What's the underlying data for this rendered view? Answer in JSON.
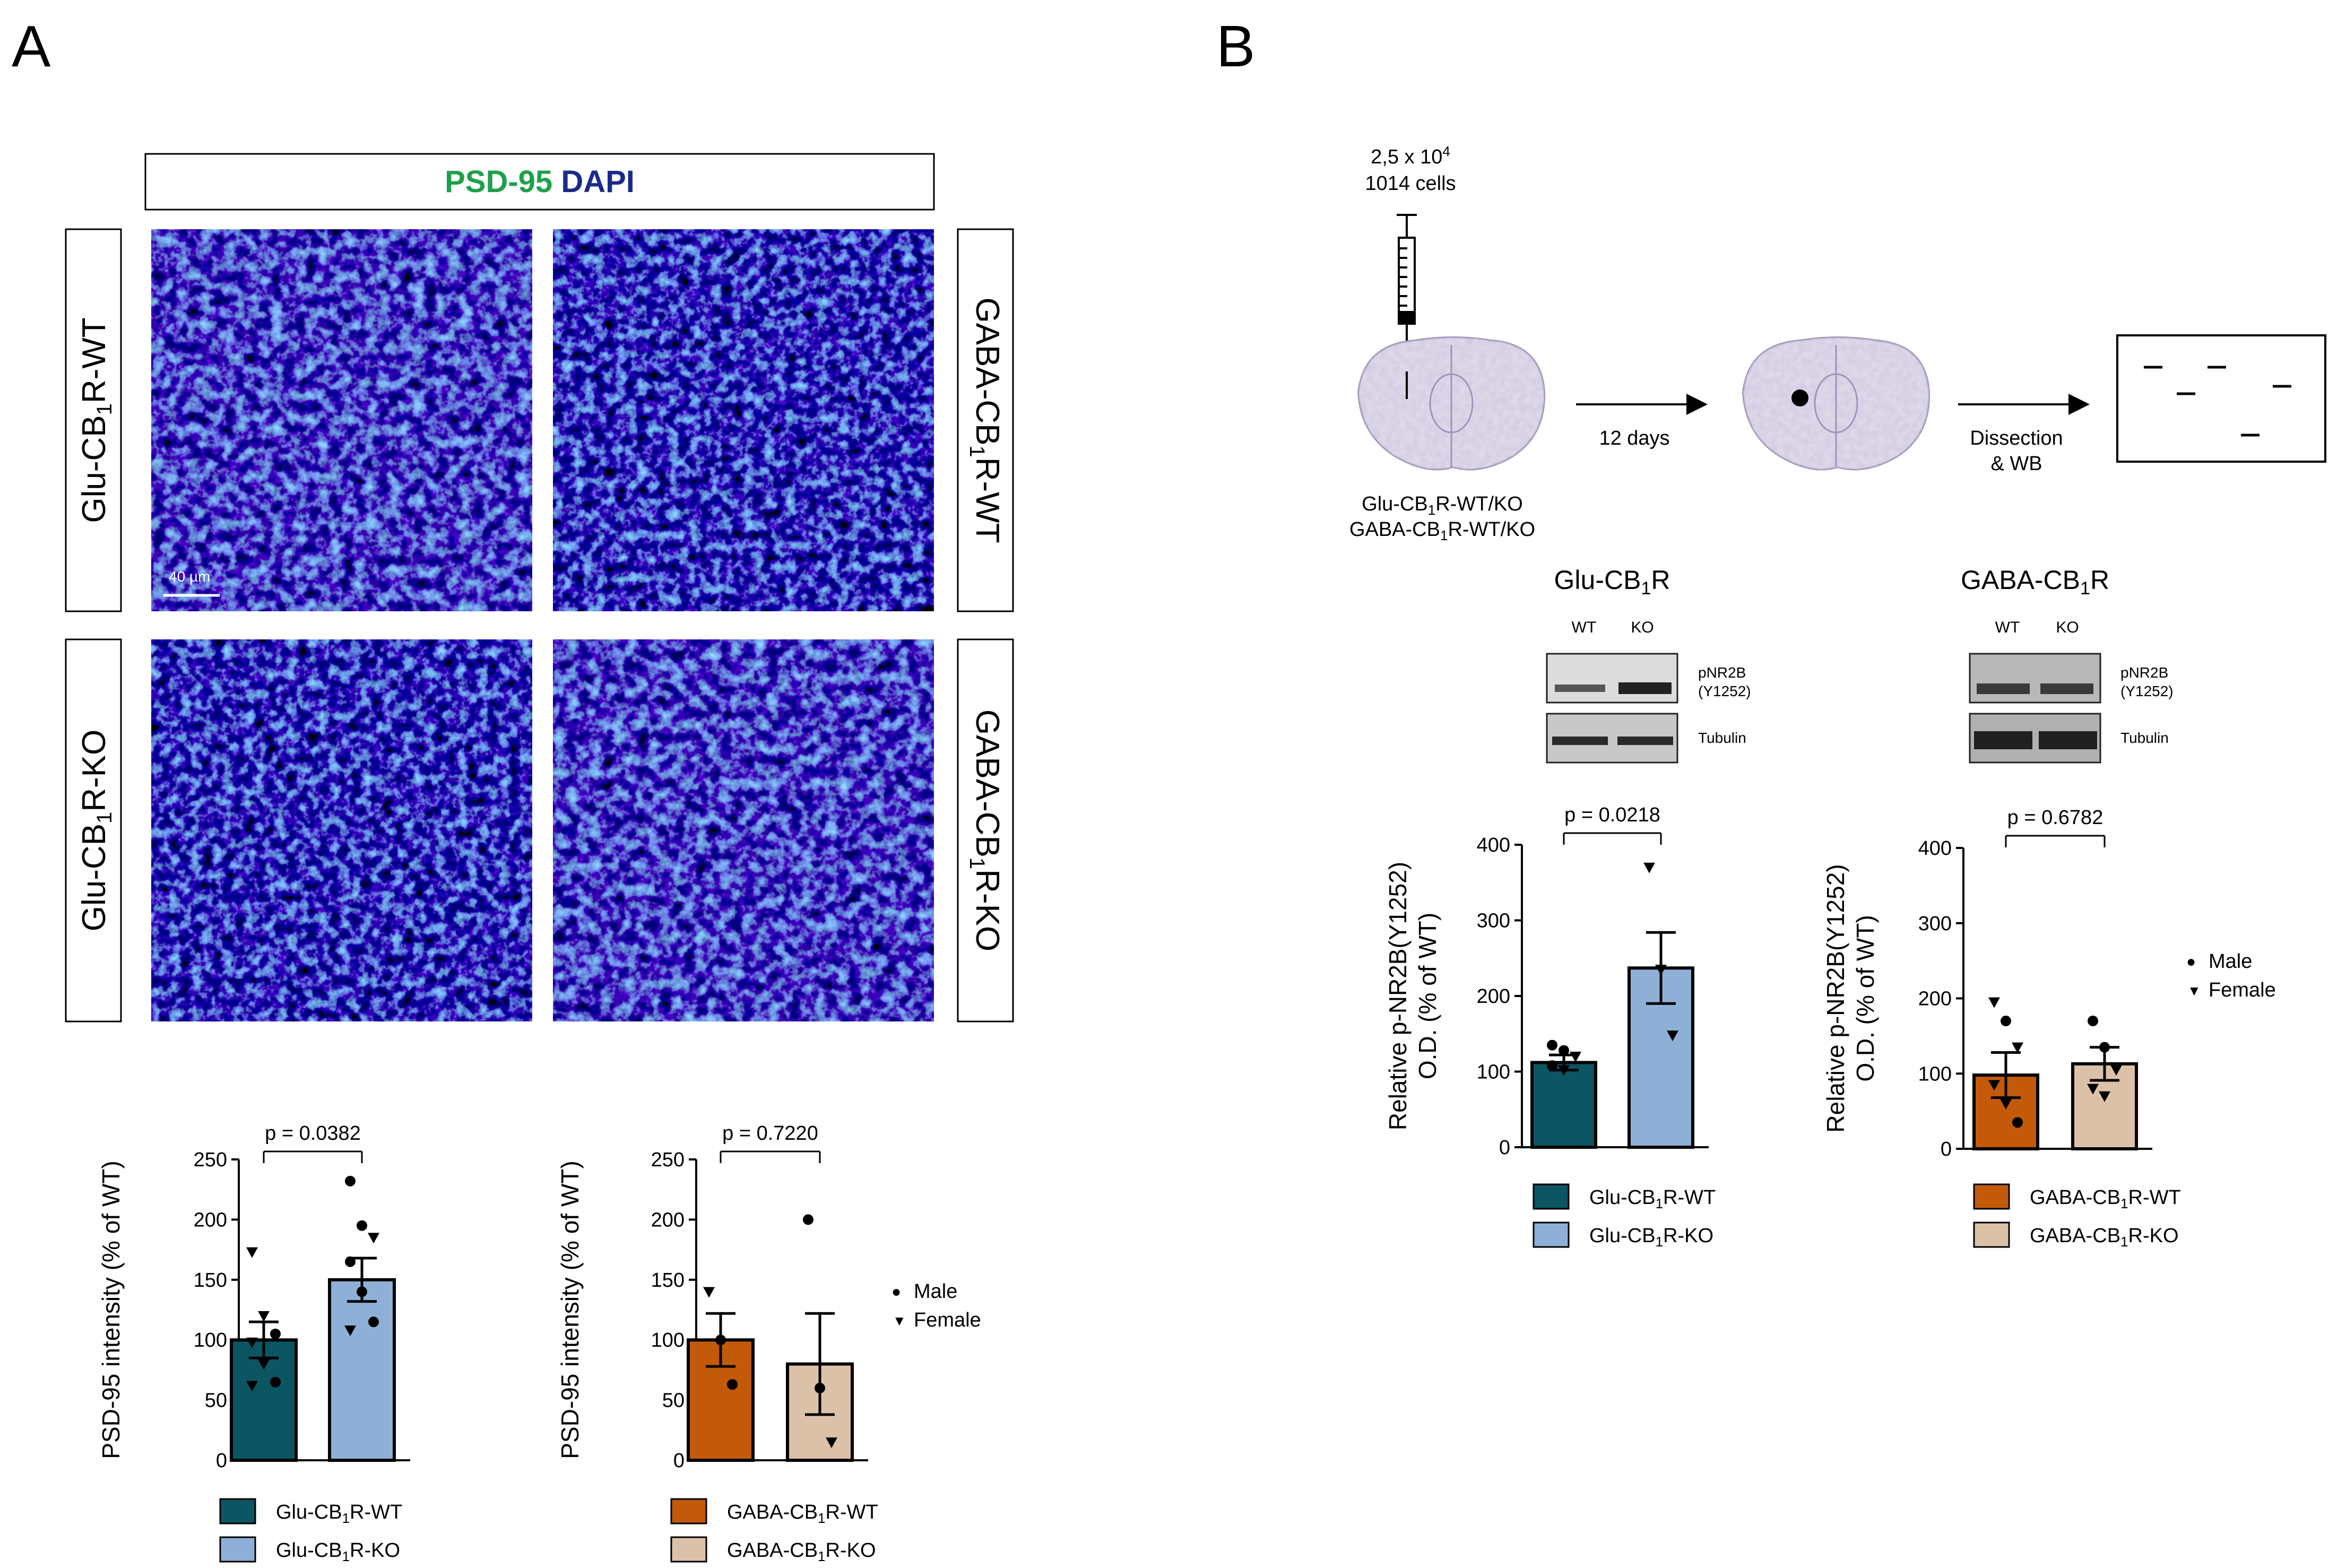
{
  "panels": {
    "a": "A",
    "b": "B"
  },
  "colors": {
    "glu_wt": "#0c5563",
    "glu_ko": "#8fb0d6",
    "gaba_wt": "#c25a0a",
    "gaba_ko": "#dcc1a9",
    "psd95": "#1ea04a",
    "dapi": "#1a2a8c"
  },
  "micro": {
    "stain_psd": "PSD-95",
    "stain_dapi": "DAPI",
    "rows": [
      "Glu-CB1R-WT",
      "Glu-CB1R-KO"
    ],
    "cols": [
      "GABA-CB1R-WT",
      "GABA-CB1R-KO"
    ],
    "scale_bar": "40 µm"
  },
  "markers": {
    "male": "Male",
    "female": "Female",
    "male_glyph": "●",
    "female_glyph": "▼"
  },
  "schematic": {
    "cells_line1": "2,5 x 10",
    "cells_exp": "4",
    "cells_line2": "1014 cells",
    "step1": "12 days",
    "step2a": "Dissection",
    "step2b": "& WB",
    "groups_line1": "Glu-CB1R-WT/KO",
    "groups_line2": "GABA-CB1R-WT/KO"
  },
  "blots": [
    {
      "title": "Glu-CB1R",
      "lanes": [
        "WT",
        "KO"
      ],
      "band1": "pNR2B",
      "band1b": "(Y1252)",
      "band2": "Tubulin"
    },
    {
      "title": "GABA-CB1R",
      "lanes": [
        "WT",
        "KO"
      ],
      "band1": "pNR2B",
      "band1b": "(Y1252)",
      "band2": "Tubulin"
    }
  ],
  "chart_data": [
    {
      "type": "bar",
      "ylabel": "PSD-95 intensity (% of WT)",
      "ylim": [
        0,
        250
      ],
      "yticks": [
        0,
        50,
        100,
        150,
        200,
        250
      ],
      "pvalue": "p = 0.0382",
      "categories": [
        "Glu-CB1R-WT",
        "Glu-CB1R-KO"
      ],
      "values": [
        100,
        150
      ],
      "sem": [
        15,
        18
      ],
      "points": [
        {
          "cat": 0,
          "sex": "female",
          "y": 173
        },
        {
          "cat": 0,
          "sex": "female",
          "y": 120
        },
        {
          "cat": 0,
          "sex": "male",
          "y": 105
        },
        {
          "cat": 0,
          "sex": "female",
          "y": 98
        },
        {
          "cat": 0,
          "sex": "female",
          "y": 80
        },
        {
          "cat": 0,
          "sex": "male",
          "y": 65
        },
        {
          "cat": 0,
          "sex": "female",
          "y": 62
        },
        {
          "cat": 1,
          "sex": "male",
          "y": 232
        },
        {
          "cat": 1,
          "sex": "male",
          "y": 195
        },
        {
          "cat": 1,
          "sex": "female",
          "y": 185
        },
        {
          "cat": 1,
          "sex": "male",
          "y": 165
        },
        {
          "cat": 1,
          "sex": "male",
          "y": 140
        },
        {
          "cat": 1,
          "sex": "male",
          "y": 115
        },
        {
          "cat": 1,
          "sex": "female",
          "y": 108
        }
      ],
      "legend": [
        "Glu-CB1R-WT",
        "Glu-CB1R-KO"
      ]
    },
    {
      "type": "bar",
      "ylabel": "PSD-95 intensity (% of WT)",
      "ylim": [
        0,
        250
      ],
      "yticks": [
        0,
        50,
        100,
        150,
        200,
        250
      ],
      "pvalue": "p = 0.7220",
      "categories": [
        "GABA-CB1R-WT",
        "GABA-CB1R-KO"
      ],
      "values": [
        100,
        80
      ],
      "sem": [
        22,
        42
      ],
      "points": [
        {
          "cat": 0,
          "sex": "female",
          "y": 140
        },
        {
          "cat": 0,
          "sex": "male",
          "y": 100
        },
        {
          "cat": 0,
          "sex": "male",
          "y": 63
        },
        {
          "cat": 1,
          "sex": "male",
          "y": 200
        },
        {
          "cat": 1,
          "sex": "male",
          "y": 60
        },
        {
          "cat": 1,
          "sex": "female",
          "y": 15
        }
      ],
      "legend": [
        "GABA-CB1R-WT",
        "GABA-CB1R-KO"
      ]
    },
    {
      "type": "bar",
      "ylabel": "Relative p-NR2B(Y1252) O.D. (% of WT)",
      "ylim": [
        0,
        400
      ],
      "yticks": [
        0,
        100,
        200,
        300,
        400
      ],
      "pvalue": "p = 0.0218",
      "categories": [
        "Glu-CB1R-WT",
        "Glu-CB1R-KO"
      ],
      "values": [
        112,
        237
      ],
      "sem": [
        10,
        47
      ],
      "points": [
        {
          "cat": 0,
          "sex": "male",
          "y": 135
        },
        {
          "cat": 0,
          "sex": "male",
          "y": 128
        },
        {
          "cat": 0,
          "sex": "female",
          "y": 120
        },
        {
          "cat": 0,
          "sex": "male",
          "y": 108
        },
        {
          "cat": 0,
          "sex": "female",
          "y": 102
        },
        {
          "cat": 1,
          "sex": "female",
          "y": 370
        },
        {
          "cat": 1,
          "sex": "female",
          "y": 235
        },
        {
          "cat": 1,
          "sex": "female",
          "y": 148
        }
      ],
      "legend": [
        "Glu-CB1R-WT",
        "Glu-CB1R-KO"
      ]
    },
    {
      "type": "bar",
      "ylabel": "Relative p-NR2B(Y1252) O.D. (% of WT)",
      "ylim": [
        0,
        400
      ],
      "yticks": [
        0,
        100,
        200,
        300,
        400
      ],
      "pvalue": "p = 0.6782",
      "categories": [
        "GABA-CB1R-WT",
        "GABA-CB1R-KO"
      ],
      "values": [
        98,
        113
      ],
      "sem": [
        30,
        22
      ],
      "points": [
        {
          "cat": 0,
          "sex": "female",
          "y": 195
        },
        {
          "cat": 0,
          "sex": "male",
          "y": 170
        },
        {
          "cat": 0,
          "sex": "female",
          "y": 135
        },
        {
          "cat": 0,
          "sex": "female",
          "y": 85
        },
        {
          "cat": 0,
          "sex": "female",
          "y": 60
        },
        {
          "cat": 0,
          "sex": "male",
          "y": 35
        },
        {
          "cat": 1,
          "sex": "male",
          "y": 170
        },
        {
          "cat": 1,
          "sex": "male",
          "y": 135
        },
        {
          "cat": 1,
          "sex": "female",
          "y": 105
        },
        {
          "cat": 1,
          "sex": "female",
          "y": 80
        },
        {
          "cat": 1,
          "sex": "female",
          "y": 70
        }
      ],
      "legend": [
        "GABA-CB1R-WT",
        "GABA-CB1R-KO"
      ]
    }
  ]
}
